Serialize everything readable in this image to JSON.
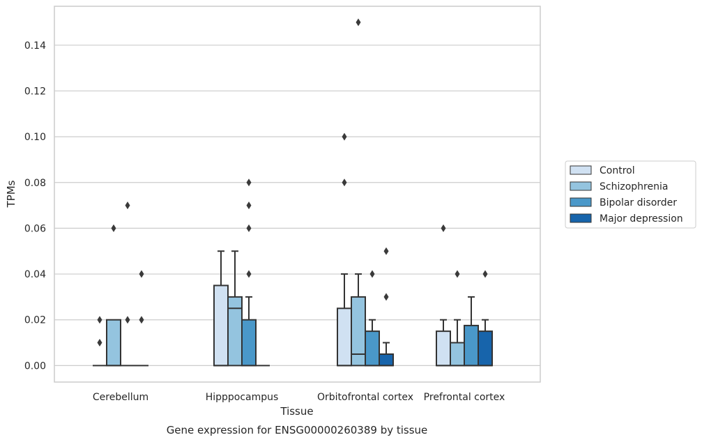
{
  "chart_data": {
    "type": "box",
    "xlabel": "Tissue",
    "ylabel": "TPMs",
    "caption": "Gene expression for ENSG00000260389 by tissue",
    "ylim": [
      -0.0072,
      0.157
    ],
    "yticks": [
      "0.00",
      "0.02",
      "0.04",
      "0.06",
      "0.08",
      "0.10",
      "0.12",
      "0.14"
    ],
    "grid": true,
    "legend_position": "right",
    "categories": [
      "Cerebellum",
      "Hipppocampus",
      "Orbitofrontal cortex",
      "Prefrontal cortex"
    ],
    "series": [
      {
        "name": "Control",
        "color": "#d0e1f2",
        "boxes": [
          {
            "q1": 0,
            "median": 0,
            "q3": 0,
            "whisker_low": 0,
            "whisker_high": 0,
            "outliers": [
              0.01,
              0.02
            ]
          },
          {
            "q1": 0,
            "median": 0,
            "q3": 0.035,
            "whisker_low": 0,
            "whisker_high": 0.05,
            "outliers": []
          },
          {
            "q1": 0,
            "median": 0,
            "q3": 0.025,
            "whisker_low": 0,
            "whisker_high": 0.04,
            "outliers": [
              0.08,
              0.1
            ]
          },
          {
            "q1": 0,
            "median": 0,
            "q3": 0.015,
            "whisker_low": 0,
            "whisker_high": 0.02,
            "outliers": [
              0.06
            ]
          }
        ]
      },
      {
        "name": "Schizophrenia",
        "color": "#94c4df",
        "boxes": [
          {
            "q1": 0,
            "median": 0,
            "q3": 0.02,
            "whisker_low": 0,
            "whisker_high": 0.02,
            "outliers": [
              0.06
            ]
          },
          {
            "q1": 0,
            "median": 0.025,
            "q3": 0.03,
            "whisker_low": 0,
            "whisker_high": 0.05,
            "outliers": []
          },
          {
            "q1": 0,
            "median": 0.005,
            "q3": 0.03,
            "whisker_low": 0,
            "whisker_high": 0.04,
            "outliers": [
              0.15
            ]
          },
          {
            "q1": 0,
            "median": 0,
            "q3": 0.01,
            "whisker_low": 0,
            "whisker_high": 0.02,
            "outliers": [
              0.04
            ]
          }
        ]
      },
      {
        "name": "Bipolar disorder",
        "color": "#4a98c9",
        "boxes": [
          {
            "q1": 0,
            "median": 0,
            "q3": 0,
            "whisker_low": 0,
            "whisker_high": 0,
            "outliers": [
              0.02,
              0.07
            ]
          },
          {
            "q1": 0,
            "median": 0,
            "q3": 0.02,
            "whisker_low": 0,
            "whisker_high": 0.03,
            "outliers": [
              0.04,
              0.06,
              0.07,
              0.08
            ]
          },
          {
            "q1": 0,
            "median": 0,
            "q3": 0.015,
            "whisker_low": 0,
            "whisker_high": 0.02,
            "outliers": [
              0.04
            ]
          },
          {
            "q1": 0,
            "median": 0,
            "q3": 0.0175,
            "whisker_low": 0,
            "whisker_high": 0.03,
            "outliers": []
          }
        ]
      },
      {
        "name": "Major depression",
        "color": "#1764ab",
        "boxes": [
          {
            "q1": 0,
            "median": 0,
            "q3": 0,
            "whisker_low": 0,
            "whisker_high": 0,
            "outliers": [
              0.02,
              0.04
            ]
          },
          {
            "q1": 0,
            "median": 0,
            "q3": 0,
            "whisker_low": 0,
            "whisker_high": 0,
            "outliers": []
          },
          {
            "q1": 0,
            "median": 0,
            "q3": 0.005,
            "whisker_low": 0,
            "whisker_high": 0.01,
            "outliers": [
              0.03,
              0.05
            ]
          },
          {
            "q1": 0,
            "median": 0,
            "q3": 0.015,
            "whisker_low": 0,
            "whisker_high": 0.02,
            "outliers": [
              0.04
            ]
          }
        ]
      }
    ]
  }
}
